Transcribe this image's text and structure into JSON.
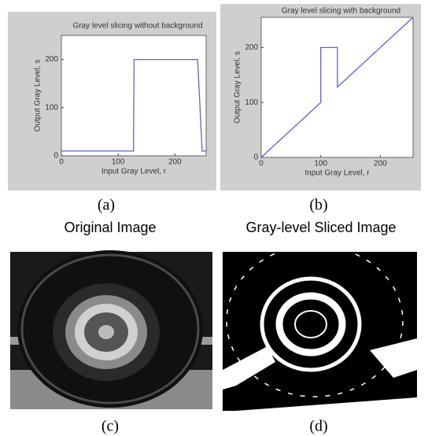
{
  "chart_data": [
    {
      "type": "line",
      "title": "Gray level slicing without background",
      "xlabel": "Input Gray Level, r",
      "ylabel": "Output Gray Level, s",
      "x": [
        0,
        127,
        128,
        240,
        248,
        255
      ],
      "series": [
        {
          "color": "#6060d8",
          "values": [
            10,
            10,
            200,
            200,
            10,
            10
          ]
        }
      ],
      "xlim": [
        0,
        255
      ],
      "ylim": [
        0,
        250
      ],
      "xticks": [
        0,
        100,
        200
      ],
      "yticks": [
        0,
        100,
        200
      ]
    },
    {
      "type": "line",
      "title": "Gray level slicing with background",
      "xlabel": "Input Gray Level, r",
      "ylabel": "Output Gray Level, s",
      "x": [
        0,
        100,
        100,
        128,
        128,
        255
      ],
      "series": [
        {
          "color": "#6060d8",
          "values": [
            0,
            100,
            200,
            200,
            128,
            255
          ]
        }
      ],
      "xlim": [
        0,
        255
      ],
      "ylim": [
        0,
        255
      ],
      "xticks": [
        0,
        100,
        200
      ],
      "yticks": [
        0,
        100,
        200
      ]
    }
  ],
  "figure": {
    "captions": [
      "(a)",
      "(b)",
      "(c)",
      "(d)"
    ],
    "image_titles": [
      "Original Image",
      "Gray-level Sliced Image"
    ]
  }
}
